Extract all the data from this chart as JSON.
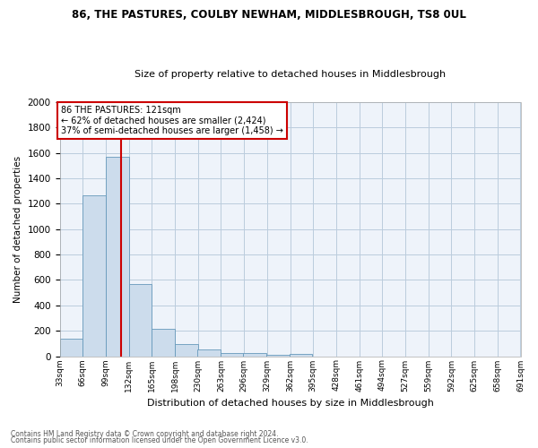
{
  "title": "86, THE PASTURES, COULBY NEWHAM, MIDDLESBROUGH, TS8 0UL",
  "subtitle": "Size of property relative to detached houses in Middlesbrough",
  "xlabel": "Distribution of detached houses by size in Middlesbrough",
  "ylabel": "Number of detached properties",
  "bar_color": "#ccdcec",
  "bar_edge_color": "#6699bb",
  "grid_color": "#bbccdd",
  "bg_color": "#eef3fa",
  "annotation_text": "86 THE PASTURES: 121sqm\n← 62% of detached houses are smaller (2,424)\n37% of semi-detached houses are larger (1,458) →",
  "vline_x": 121,
  "vline_color": "#cc0000",
  "annotation_box_color": "#ffffff",
  "annotation_box_edge": "#cc0000",
  "footer1": "Contains HM Land Registry data © Crown copyright and database right 2024.",
  "footer2": "Contains public sector information licensed under the Open Government Licence v3.0.",
  "bins_left": [
    33,
    66,
    99,
    132,
    165,
    198,
    230,
    263,
    296,
    329,
    362,
    395,
    428,
    461,
    494,
    527,
    559,
    592,
    625,
    658
  ],
  "bin_width": 33,
  "heights": [
    135,
    1265,
    1565,
    565,
    215,
    98,
    50,
    28,
    22,
    8,
    18,
    0,
    0,
    0,
    0,
    0,
    0,
    0,
    0,
    0
  ],
  "xtick_labels": [
    "33sqm",
    "66sqm",
    "99sqm",
    "132sqm",
    "165sqm",
    "198sqm",
    "230sqm",
    "263sqm",
    "296sqm",
    "329sqm",
    "362sqm",
    "395sqm",
    "428sqm",
    "461sqm",
    "494sqm",
    "527sqm",
    "559sqm",
    "592sqm",
    "625sqm",
    "658sqm",
    "691sqm"
  ],
  "ylim": [
    0,
    2000
  ],
  "yticks": [
    0,
    200,
    400,
    600,
    800,
    1000,
    1200,
    1400,
    1600,
    1800,
    2000
  ]
}
